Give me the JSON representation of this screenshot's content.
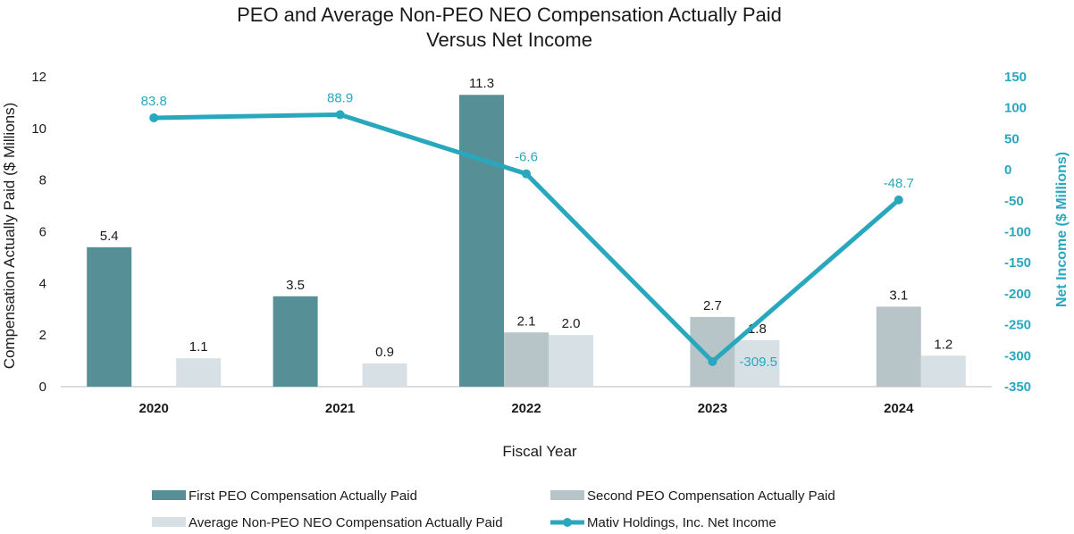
{
  "chart_data": {
    "type": "bar",
    "title": [
      "PEO and Average Non-PEO NEO Compensation Actually Paid",
      "Versus Net Income"
    ],
    "xlabel": "Fiscal Year",
    "ylabel": "Compensation Actually Paid ($ Millions)",
    "ylabel_right": "Net Income ($ Millions)",
    "ylim": [
      0,
      12
    ],
    "yticks": [
      0,
      2,
      4,
      6,
      8,
      10,
      12
    ],
    "ylim_right": [
      -350,
      150
    ],
    "yticks_right": [
      -350,
      -300,
      -250,
      -200,
      -150,
      -100,
      -50,
      0,
      50,
      100,
      150
    ],
    "categories": [
      "2020",
      "2021",
      "2022",
      "2023",
      "2024"
    ],
    "series": [
      {
        "name": "First PEO Compensation Actually Paid",
        "type": "bar",
        "color": "#578f97",
        "values": [
          5.4,
          3.5,
          11.3,
          null,
          null
        ],
        "labels": [
          "5.4",
          "3.5",
          "11.3",
          "",
          ""
        ]
      },
      {
        "name": "Second PEO Compensation Actually Paid",
        "type": "bar",
        "color": "#b7c4c8",
        "values": [
          null,
          null,
          2.1,
          2.7,
          3.1
        ],
        "labels": [
          "",
          "",
          "2.1",
          "2.7",
          "3.1"
        ]
      },
      {
        "name": "Average Non-PEO NEO Compensation Actually Paid",
        "type": "bar",
        "color": "#d7e1e5",
        "values": [
          1.1,
          0.9,
          2.0,
          1.8,
          1.2
        ],
        "labels": [
          "1.1",
          "0.9",
          "2.0",
          "1.8",
          "1.2"
        ]
      },
      {
        "name": "Mativ Holdings, Inc. Net Income",
        "type": "line",
        "axis": "right",
        "color": "#29a8bd",
        "values": [
          83.8,
          88.9,
          -6.6,
          -309.5,
          -48.7
        ],
        "labels": [
          "83.8",
          "88.9",
          "-6.6",
          "-309.5",
          "-48.7"
        ]
      }
    ],
    "legend_position": "bottom"
  }
}
